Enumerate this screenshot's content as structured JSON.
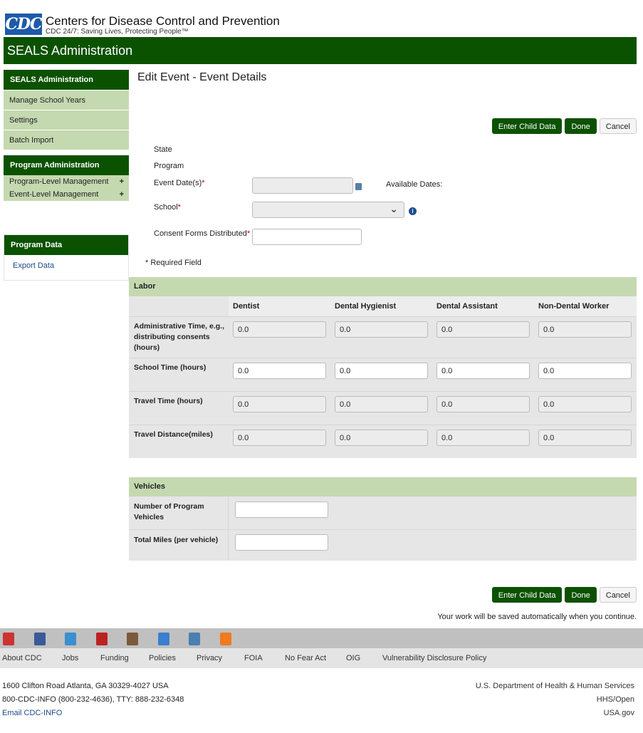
{
  "header": {
    "logo": "CDC",
    "org": "Centers for Disease Control and Prevention",
    "tagline": "CDC 24/7: Saving Lives, Protecting People™",
    "banner": "SEALS Administration"
  },
  "sidebar": {
    "seals_header": "SEALS Administration",
    "seals_items": [
      "Manage School Years",
      "Settings",
      "Batch Import"
    ],
    "program_header": "Program Administration",
    "program_items": [
      "Program-Level Management",
      "Event-Level Management"
    ],
    "data_header": "Program Data",
    "data_items": [
      "Export Data"
    ]
  },
  "page": {
    "title": "Edit Event - Event Details"
  },
  "buttons": {
    "enter_child": "Enter Child Data",
    "done": "Done",
    "cancel": "Cancel"
  },
  "form": {
    "state_label": "State",
    "program_label": "Program",
    "event_date_label": "Event Date(s)",
    "school_label": "School",
    "consent_label": "Consent Forms Distributed",
    "available_dates": "Available Dates:",
    "required_note": "* Required Field",
    "asterisk": "*"
  },
  "labor": {
    "title": "Labor",
    "columns": [
      "Dentist",
      "Dental Hygienist",
      "Dental Assistant",
      "Non-Dental Worker"
    ],
    "rows": [
      {
        "label": "Administrative Time, e.g., distributing consents (hours)",
        "values": [
          "0.0",
          "0.0",
          "0.0",
          "0.0"
        ],
        "editable": false
      },
      {
        "label": "School Time (hours)",
        "values": [
          "0.0",
          "0.0",
          "0.0",
          "0.0"
        ],
        "editable": true
      },
      {
        "label": "Travel Time (hours)",
        "values": [
          "0.0",
          "0.0",
          "0.0",
          "0.0"
        ],
        "editable": false
      },
      {
        "label": "Travel Distance(miles)",
        "values": [
          "0.0",
          "0.0",
          "0.0",
          "0.0"
        ],
        "editable": false
      }
    ]
  },
  "vehicles": {
    "title": "Vehicles",
    "rows": [
      {
        "label": "Number of Program Vehicles",
        "value": ""
      },
      {
        "label": "Total Miles (per vehicle)",
        "value": ""
      }
    ]
  },
  "autosave": "Your work will be saved automatically when you continue.",
  "footer": {
    "social": [
      "email-icon",
      "facebook-icon",
      "twitter-icon",
      "youtube-icon",
      "instagram-icon",
      "podcast-icon",
      "cdc-tv-icon",
      "rss-icon"
    ],
    "links": [
      "About CDC",
      "Jobs",
      "Funding",
      "Policies",
      "Privacy",
      "FOIA",
      "No Fear Act",
      "OIG",
      "Vulnerability Disclosure Policy"
    ],
    "address": "1600 Clifton Road Atlanta, GA 30329-4027 USA",
    "phone": "800-CDC-INFO (800-232-4636), TTY: 888-232-6348",
    "email": "Email CDC-INFO",
    "hhs": "U.S. Department of Health & Human Services",
    "hhs_open": "HHS/Open",
    "usagov": "USA.gov"
  },
  "colors": {
    "brand_green": "#0b5200",
    "light_green": "#c5d9b0",
    "link_blue": "#1a4b8c"
  }
}
